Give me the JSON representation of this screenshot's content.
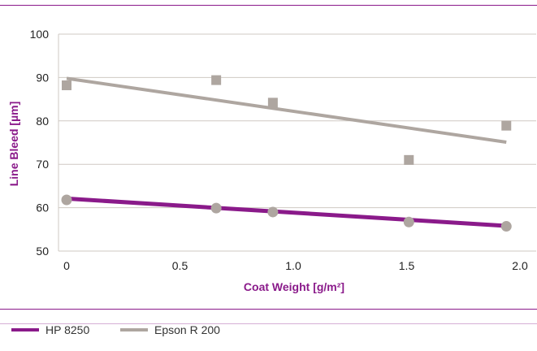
{
  "colors": {
    "accent": "#8a1a8a",
    "hp": "#8a1a8a",
    "epson": "#aea6a0",
    "rule": "#8a1a8a",
    "grid": "#cfc9c3",
    "axis_text": "#222222"
  },
  "chart_data": {
    "type": "scatter",
    "title": "",
    "xlabel": "Coat Weight [g/m²]",
    "ylabel": "Line Bleed [µm]",
    "xlim": [
      0,
      2.0
    ],
    "ylim": [
      50,
      100
    ],
    "x_ticks": [
      "0",
      "0.5",
      "1.0",
      "1.5",
      "2.0"
    ],
    "y_ticks": [
      "50",
      "60",
      "70",
      "80",
      "90",
      "100"
    ],
    "grid": true,
    "legend_position": "bottom-left",
    "series": [
      {
        "name": "HP 8250",
        "marker": "circle",
        "color": "#8a1a8a",
        "marker_color": "#aea6a0",
        "points": [
          {
            "x": 0.0,
            "y": 61.8
          },
          {
            "x": 0.66,
            "y": 59.9
          },
          {
            "x": 0.91,
            "y": 59.0
          },
          {
            "x": 1.51,
            "y": 56.7
          },
          {
            "x": 1.94,
            "y": 55.7
          }
        ],
        "trendline": {
          "x": [
            0.0,
            1.94
          ],
          "y": [
            62.1,
            55.8
          ]
        }
      },
      {
        "name": "Epson R 200",
        "marker": "square",
        "color": "#aea6a0",
        "marker_color": "#aea6a0",
        "points": [
          {
            "x": 0.0,
            "y": 88.2
          },
          {
            "x": 0.66,
            "y": 89.4
          },
          {
            "x": 0.91,
            "y": 84.2
          },
          {
            "x": 1.51,
            "y": 71.0
          },
          {
            "x": 1.94,
            "y": 78.9
          }
        ],
        "trendline": {
          "x": [
            0.0,
            1.94
          ],
          "y": [
            89.8,
            75.1
          ]
        }
      }
    ]
  }
}
